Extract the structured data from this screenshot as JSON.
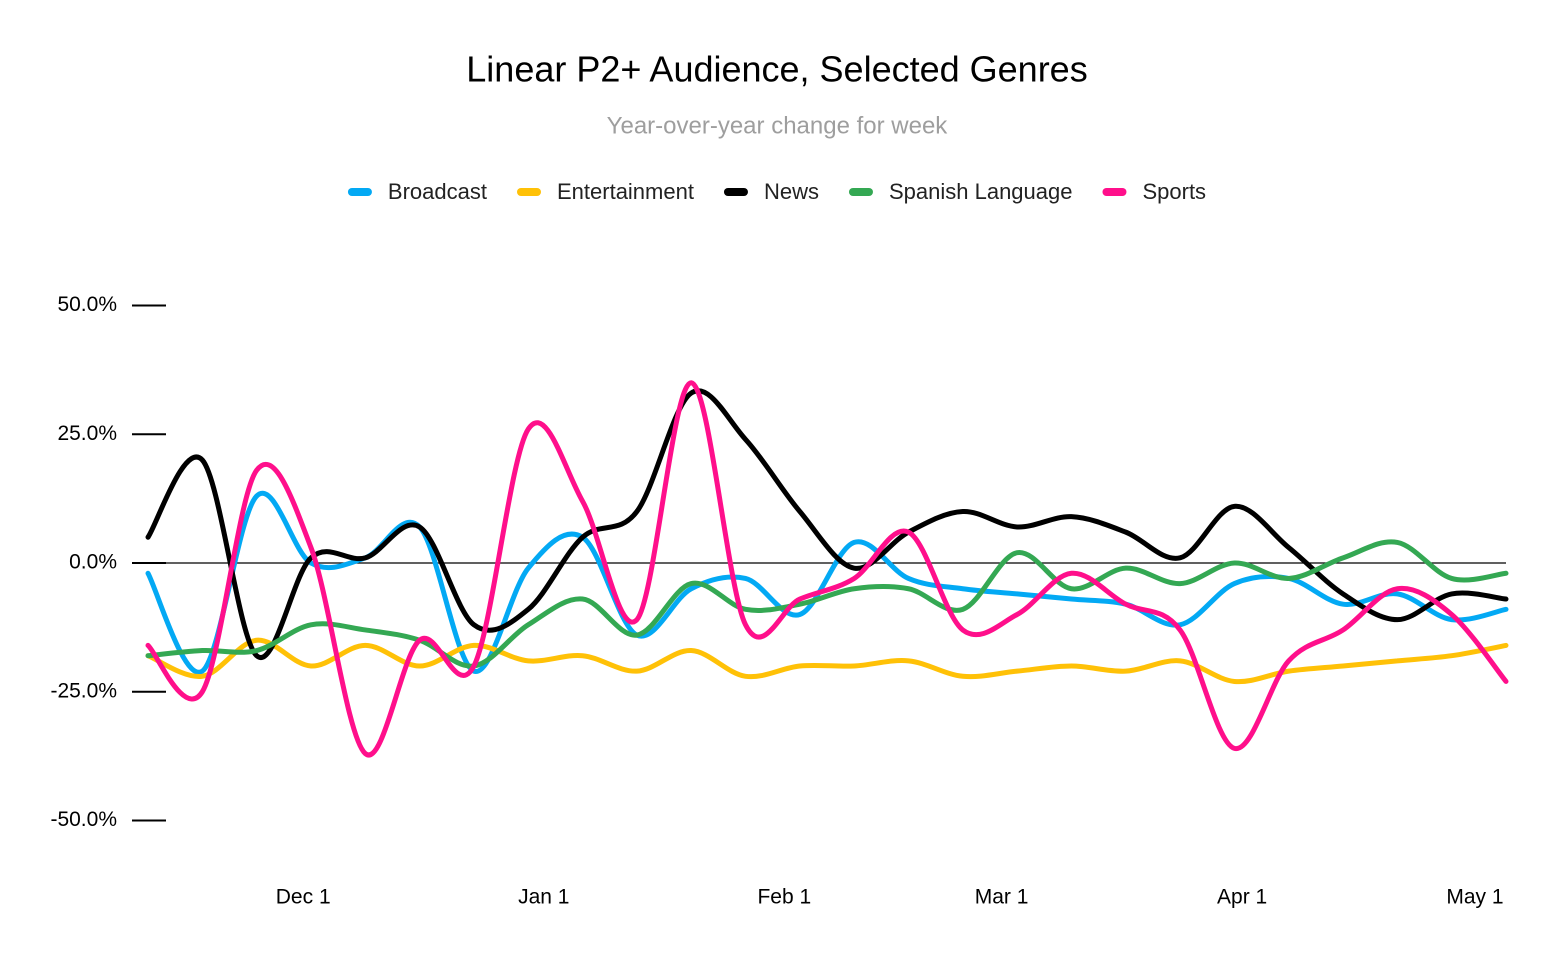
{
  "chart_data": {
    "type": "line",
    "title": "Linear P2+ Audience, Selected Genres",
    "subtitle": "Year-over-year change for week",
    "x": [
      "Nov 11",
      "Nov 18",
      "Nov 25",
      "Dec 2",
      "Dec 9",
      "Dec 16",
      "Dec 23",
      "Dec 30",
      "Jan 6",
      "Jan 13",
      "Jan 20",
      "Jan 27",
      "Feb 3",
      "Feb 10",
      "Feb 17",
      "Feb 24",
      "Mar 3",
      "Mar 10",
      "Mar 17",
      "Mar 24",
      "Mar 31",
      "Apr 7",
      "Apr 14",
      "Apr 21",
      "Apr 28",
      "May 5"
    ],
    "xlim": [
      "Nov 11",
      "May 5"
    ],
    "xticks": [
      "Dec 1",
      "Jan 1",
      "Feb 1",
      "Mar 1",
      "Apr 1",
      "May 1"
    ],
    "ylim": [
      -60,
      60
    ],
    "yticks": [
      {
        "value": -50,
        "label": "-50.0%"
      },
      {
        "value": -25,
        "label": "-25.0%"
      },
      {
        "value": 0,
        "label": "0.0%"
      },
      {
        "value": 25,
        "label": "25.0%"
      },
      {
        "value": 50,
        "label": "50.0%"
      }
    ],
    "legend": "top",
    "series": [
      {
        "name": "Broadcast",
        "color": "#03a9f4",
        "values": [
          -2,
          -21,
          13,
          0,
          1,
          7,
          -21,
          -1,
          5,
          -14,
          -5,
          -3,
          -10,
          4,
          -3,
          -5,
          -6,
          -7,
          -8,
          -12,
          -4,
          -3,
          -8,
          -6,
          -11,
          -9
        ]
      },
      {
        "name": "Entertainment",
        "color": "#ffc107",
        "values": [
          -18,
          -22,
          -15,
          -20,
          -16,
          -20,
          -16,
          -19,
          -18,
          -21,
          -17,
          -22,
          -20,
          -20,
          -19,
          -22,
          -21,
          -20,
          -21,
          -19,
          -23,
          -21,
          -20,
          -19,
          -18,
          -16
        ]
      },
      {
        "name": "News",
        "color": "#000000",
        "values": [
          5,
          20,
          -18,
          1,
          1,
          7,
          -12,
          -9,
          5,
          10,
          33,
          24,
          10,
          -1,
          6,
          10,
          7,
          9,
          6,
          1,
          11,
          3,
          -6,
          -11,
          -6,
          -7
        ]
      },
      {
        "name": "Spanish Language",
        "color": "#34a853",
        "values": [
          -18,
          -17,
          -17,
          -12,
          -13,
          -15,
          -20,
          -12,
          -7,
          -14,
          -4,
          -9,
          -8,
          -5,
          -5,
          -9,
          2,
          -5,
          -1,
          -4,
          0,
          -3,
          1,
          4,
          -3,
          -2
        ]
      },
      {
        "name": "Sports",
        "color": "#ff0f8b",
        "values": [
          -16,
          -25,
          18,
          3,
          -37,
          -15,
          -20,
          26,
          12,
          -11,
          35,
          -12,
          -7,
          -3,
          6,
          -13,
          -10,
          -2,
          -8,
          -13,
          -36,
          -19,
          -13,
          -5,
          -10,
          -23
        ]
      }
    ]
  }
}
